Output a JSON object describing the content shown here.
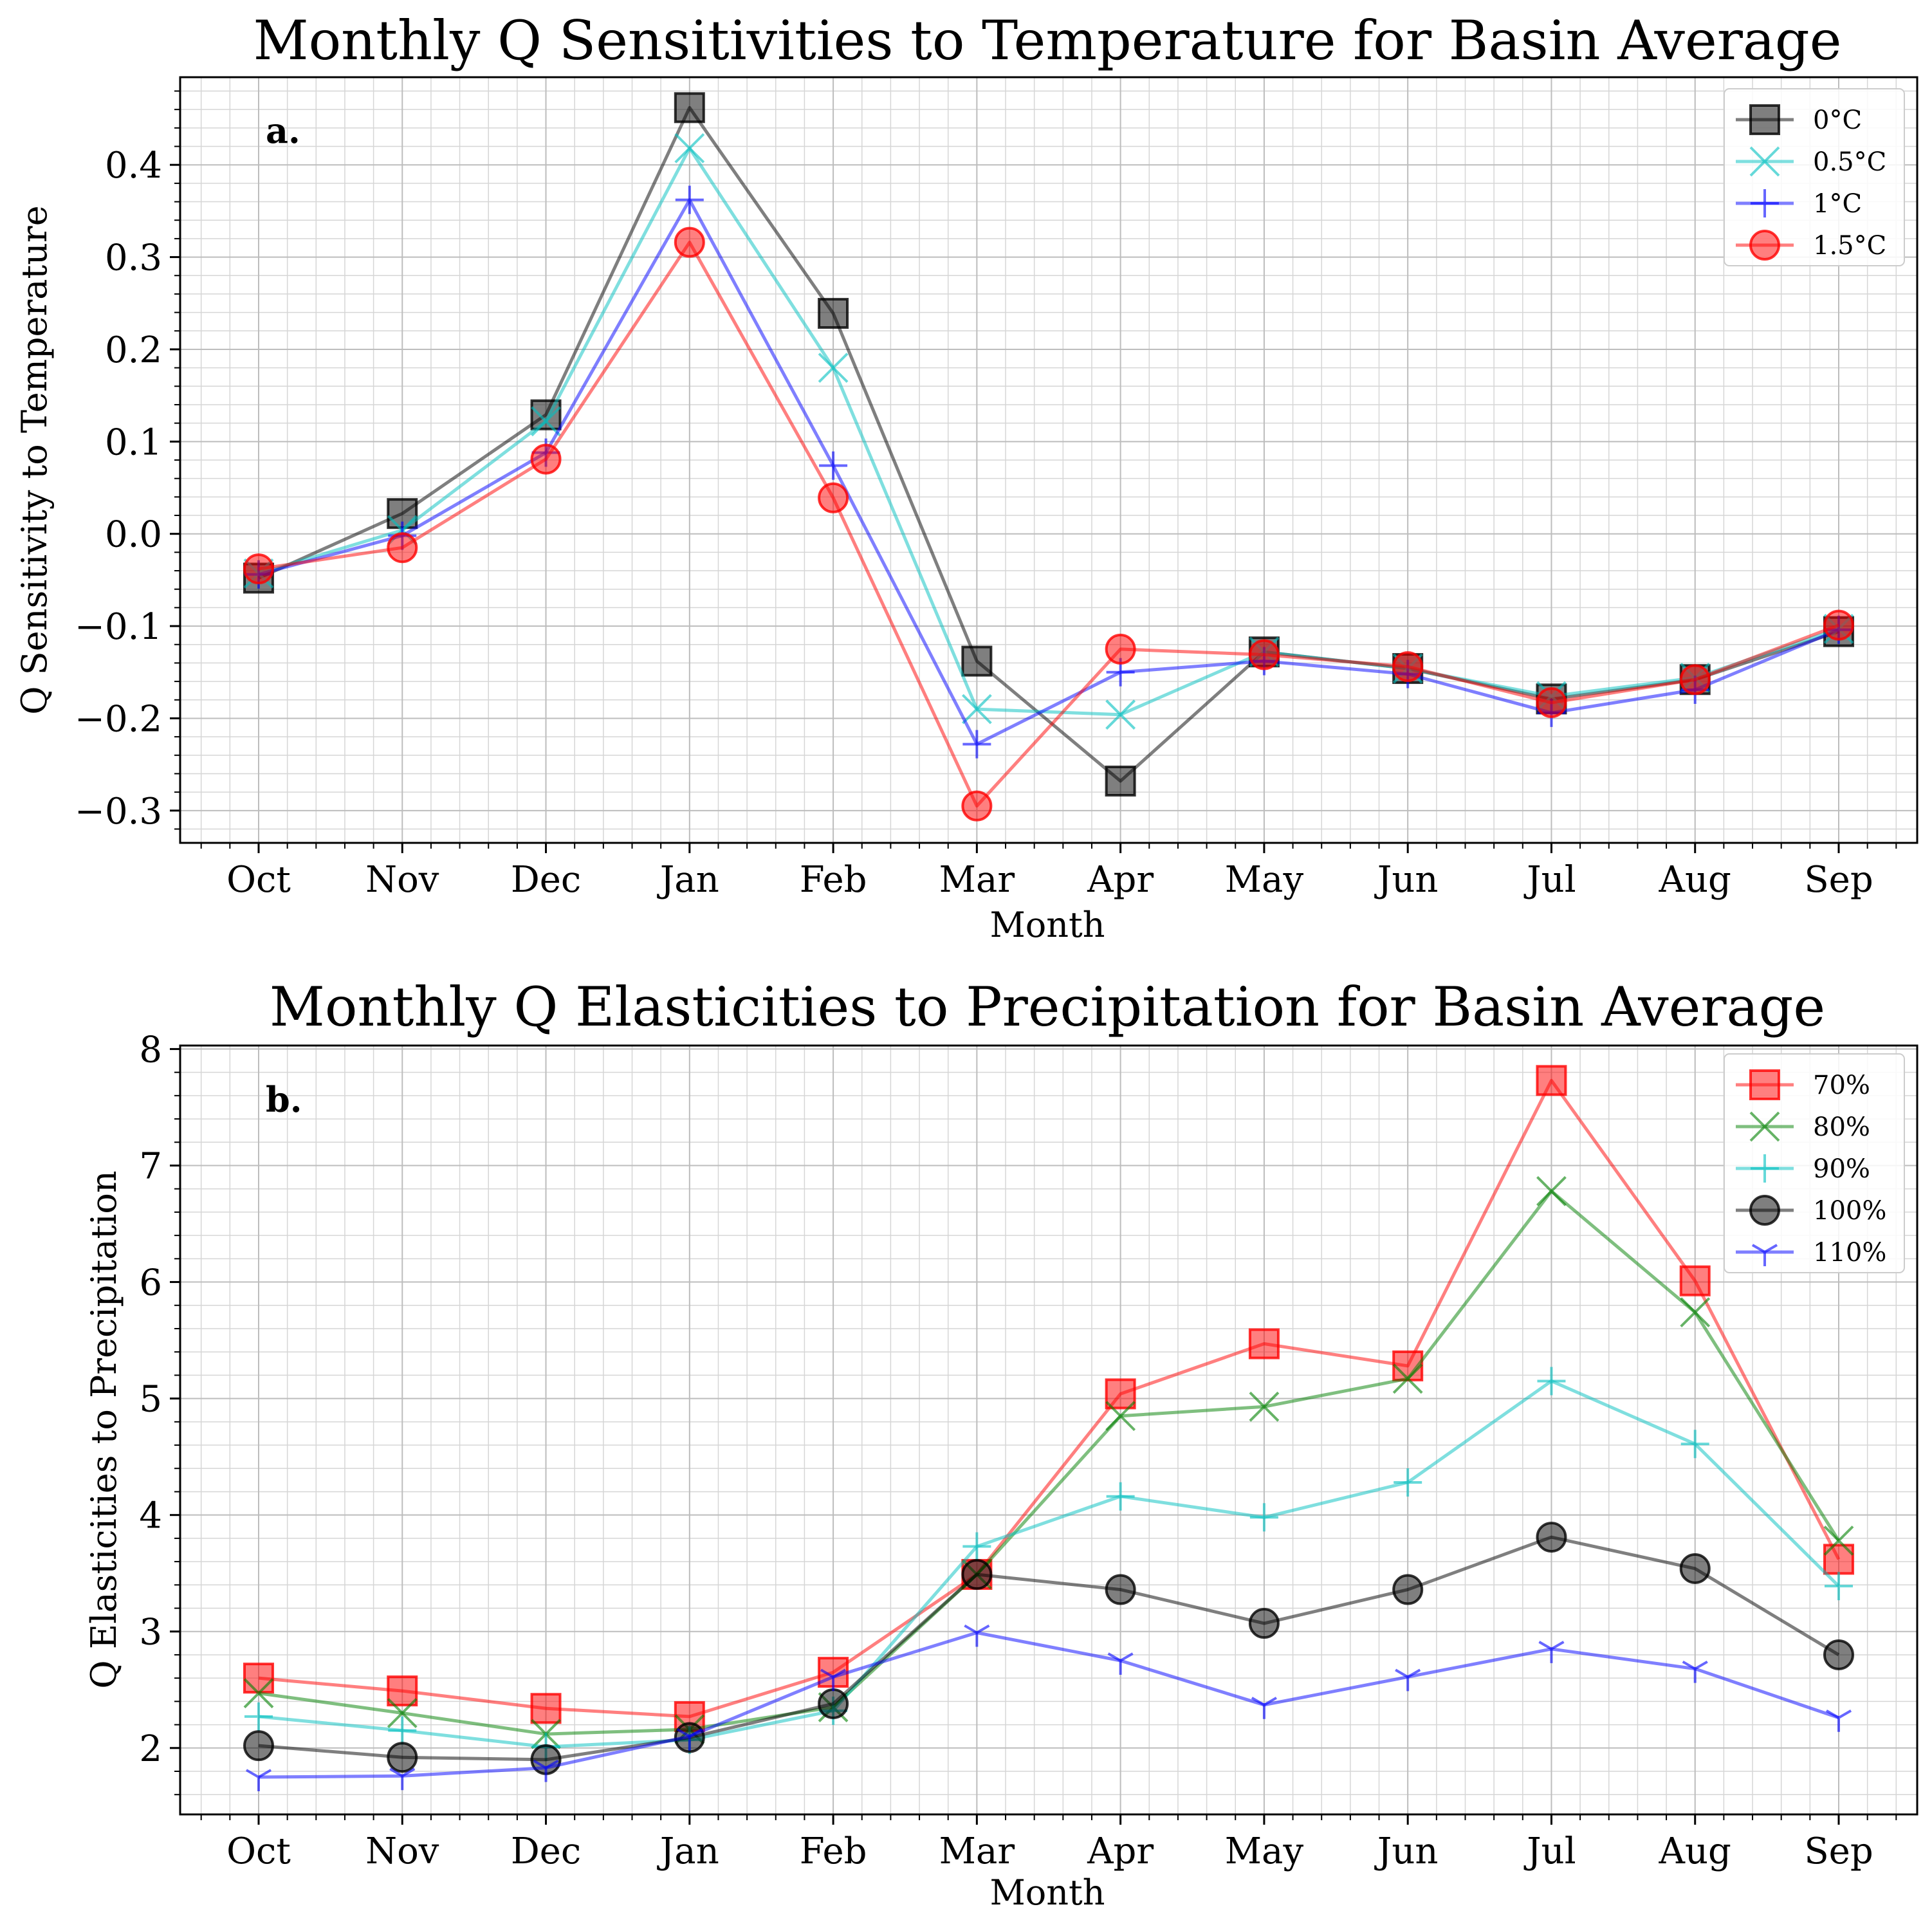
{
  "chart_data": [
    {
      "type": "line",
      "panel_label": "a.",
      "title": "Monthly Q Sensitivities to Temperature for Basin Average",
      "xlabel": "Month",
      "ylabel": "Q Sensitivity to Temperature",
      "categories": [
        "Oct",
        "Nov",
        "Dec",
        "Jan",
        "Feb",
        "Mar",
        "Apr",
        "May",
        "Jun",
        "Jul",
        "Aug",
        "Sep"
      ],
      "ylim": [
        -0.335,
        0.495
      ],
      "yticks": [
        -0.3,
        -0.2,
        -0.1,
        0.0,
        0.1,
        0.2,
        0.3,
        0.4
      ],
      "ytick_labels": [
        "−0.3",
        "−0.2",
        "−0.1",
        "0.0",
        "0.1",
        "0.2",
        "0.3",
        "0.4"
      ],
      "minor_y_step": 0.02,
      "grid": true,
      "legend_position": "top-right",
      "series": [
        {
          "name": "0°C",
          "color": "#000000",
          "marker": "square",
          "values": [
            -0.048,
            0.022,
            0.129,
            0.462,
            0.239,
            -0.138,
            -0.268,
            -0.128,
            -0.146,
            -0.179,
            -0.158,
            -0.106
          ]
        },
        {
          "name": "0.5°C",
          "color": "#00bfbf",
          "marker": "x",
          "values": [
            -0.043,
            0.004,
            0.122,
            0.418,
            0.18,
            -0.19,
            -0.196,
            -0.128,
            -0.146,
            -0.176,
            -0.156,
            -0.103
          ]
        },
        {
          "name": "1°C",
          "color": "#0000ff",
          "marker": "plus",
          "values": [
            -0.044,
            -0.002,
            0.088,
            0.362,
            0.074,
            -0.228,
            -0.15,
            -0.138,
            -0.152,
            -0.194,
            -0.169,
            -0.104
          ]
        },
        {
          "name": "1.5°C",
          "color": "#ff0000",
          "marker": "circle",
          "values": [
            -0.038,
            -0.015,
            0.081,
            0.316,
            0.039,
            -0.295,
            -0.125,
            -0.131,
            -0.144,
            -0.183,
            -0.158,
            -0.099
          ]
        }
      ]
    },
    {
      "type": "line",
      "panel_label": "b.",
      "title": "Monthly Q Elasticities to Precipitation for Basin Average",
      "xlabel": "Month",
      "ylabel": "Q Elasticities to Precipitation",
      "categories": [
        "Oct",
        "Nov",
        "Dec",
        "Jan",
        "Feb",
        "Mar",
        "Apr",
        "May",
        "Jun",
        "Jul",
        "Aug",
        "Sep"
      ],
      "ylim": [
        1.43,
        8.03
      ],
      "yticks": [
        2,
        3,
        4,
        5,
        6,
        7,
        8
      ],
      "ytick_labels": [
        "2",
        "3",
        "4",
        "5",
        "6",
        "7",
        "8"
      ],
      "minor_y_step": 0.2,
      "grid": true,
      "legend_position": "top-right",
      "series": [
        {
          "name": "70%",
          "color": "#ff0000",
          "marker": "square",
          "values": [
            2.6,
            2.49,
            2.34,
            2.27,
            2.65,
            3.49,
            5.04,
            5.47,
            5.28,
            7.73,
            6.01,
            3.62
          ]
        },
        {
          "name": "80%",
          "color": "#008000",
          "marker": "x",
          "values": [
            2.47,
            2.3,
            2.12,
            2.16,
            2.35,
            3.49,
            4.85,
            4.93,
            5.17,
            6.78,
            5.74,
            3.78
          ]
        },
        {
          "name": "90%",
          "color": "#00bfbf",
          "marker": "plus",
          "values": [
            2.27,
            2.15,
            2.01,
            2.07,
            2.32,
            3.73,
            4.16,
            3.98,
            4.28,
            5.15,
            4.61,
            3.39
          ]
        },
        {
          "name": "100%",
          "color": "#000000",
          "marker": "circle",
          "values": [
            2.02,
            1.92,
            1.9,
            2.09,
            2.38,
            3.49,
            3.36,
            3.07,
            3.36,
            3.81,
            3.54,
            2.8
          ]
        },
        {
          "name": "110%",
          "color": "#0000ff",
          "marker": "tri_down",
          "values": [
            1.75,
            1.76,
            1.83,
            2.1,
            2.61,
            2.99,
            2.75,
            2.37,
            2.61,
            2.85,
            2.68,
            2.26
          ]
        }
      ]
    }
  ]
}
